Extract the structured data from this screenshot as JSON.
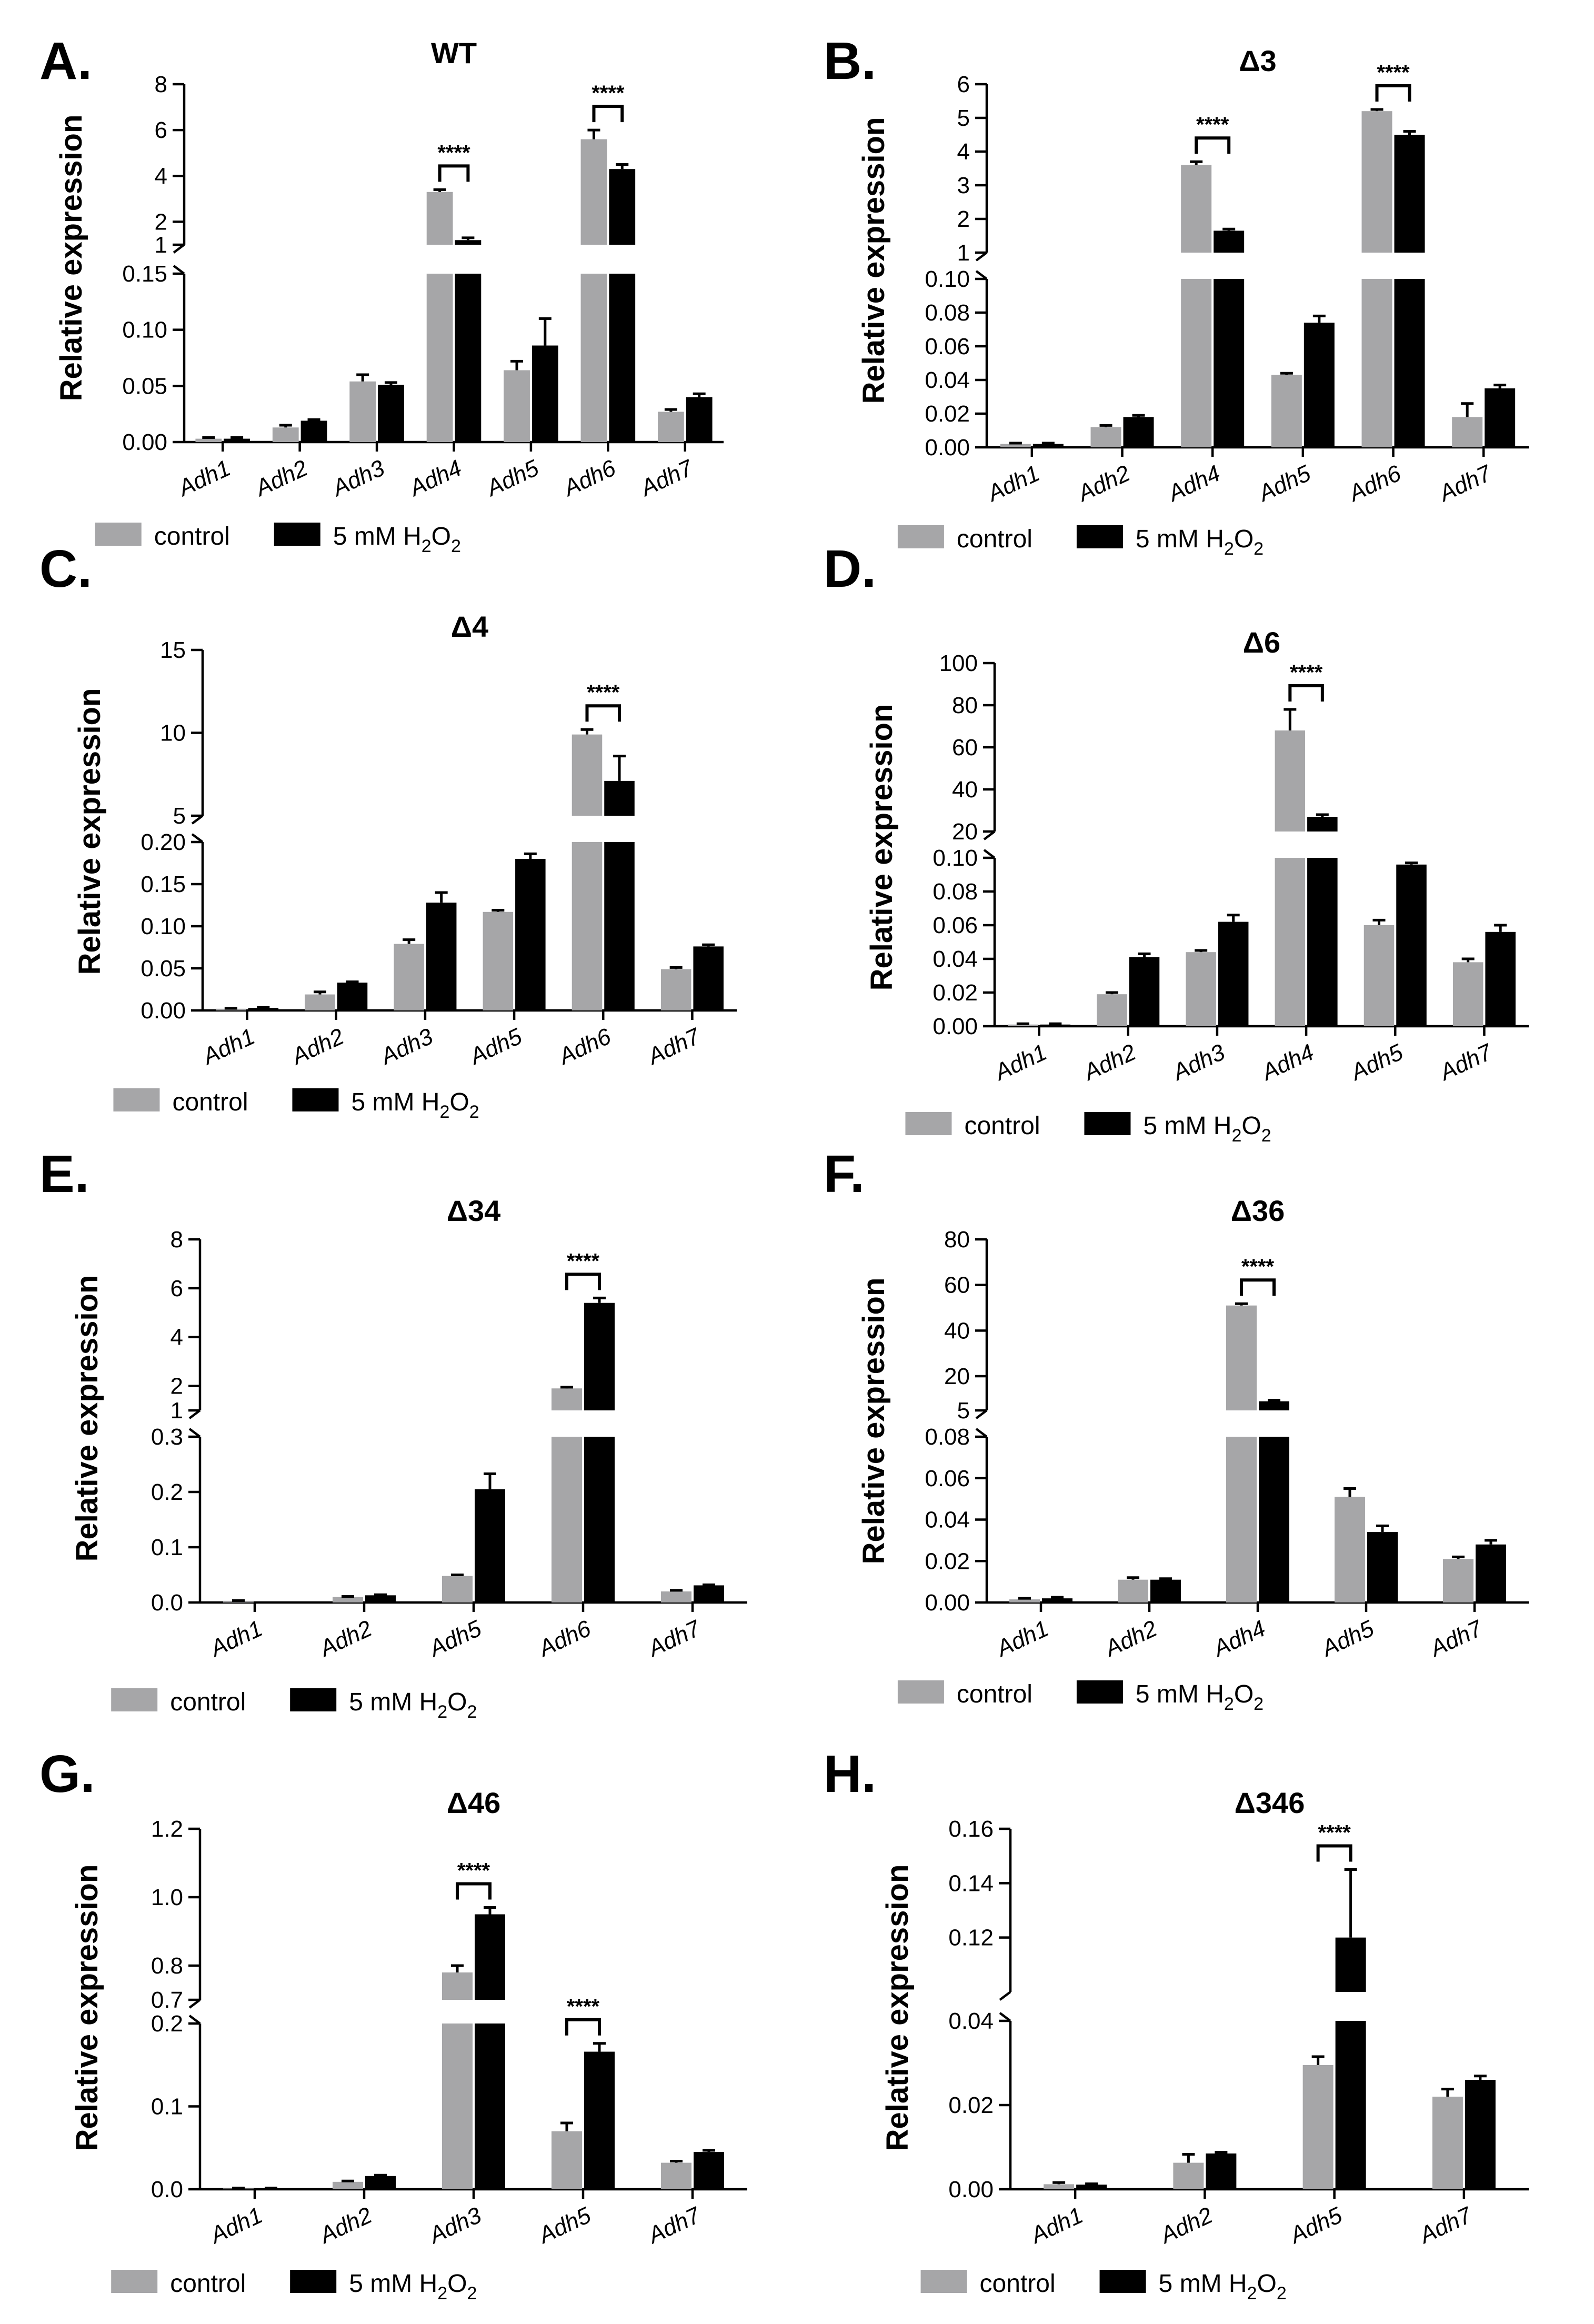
{
  "legend": {
    "control": "control",
    "treatment_prefix": "5 mM H",
    "treatment_sub1": "2",
    "treatment_mid": "O",
    "treatment_sub2": "2",
    "control_color": "#a6a6a8",
    "treatment_color": "#000000"
  },
  "y_axis_label": "Relative expression",
  "chart_data": [
    {
      "type": "bar",
      "panel": "A.",
      "title": "WT",
      "categories": [
        "Adh1",
        "Adh2",
        "Adh3",
        "Adh4",
        "Adh5",
        "Adh6",
        "Adh7"
      ],
      "series": [
        {
          "name": "control",
          "values": [
            0.003,
            0.013,
            0.054,
            3.3,
            0.064,
            5.6,
            0.027
          ],
          "errors": [
            0.001,
            0.002,
            0.006,
            0.1,
            0.008,
            0.4,
            0.002
          ]
        },
        {
          "name": "5 mM H2O2",
          "values": [
            0.003,
            0.019,
            0.051,
            1.2,
            0.086,
            4.3,
            0.04
          ],
          "errors": [
            0.001,
            0.001,
            0.002,
            0.1,
            0.024,
            0.2,
            0.003
          ]
        }
      ],
      "broken_axis": true,
      "lower_ylim": [
        0,
        0.15
      ],
      "lower_ticks": [
        "0.00",
        "0.05",
        "0.10",
        "0.15"
      ],
      "upper_ylim": [
        1,
        8
      ],
      "upper_ticks": [
        "1",
        "2",
        "4",
        "6",
        "8"
      ],
      "significance": [
        {
          "category": "Adh4",
          "label": "****"
        },
        {
          "category": "Adh6",
          "label": "****"
        }
      ]
    },
    {
      "type": "bar",
      "panel": "B.",
      "title": "Δ3",
      "categories": [
        "Adh1",
        "Adh2",
        "Adh4",
        "Adh5",
        "Adh6",
        "Adh7"
      ],
      "series": [
        {
          "name": "control",
          "values": [
            0.002,
            0.012,
            3.6,
            0.043,
            5.2,
            0.018
          ],
          "errors": [
            0.0005,
            0.001,
            0.1,
            0.001,
            0.05,
            0.008
          ]
        },
        {
          "name": "5 mM H2O2",
          "values": [
            0.002,
            0.018,
            1.65,
            0.074,
            4.5,
            0.035
          ],
          "errors": [
            0.0005,
            0.001,
            0.05,
            0.004,
            0.1,
            0.002
          ]
        }
      ],
      "broken_axis": true,
      "lower_ylim": [
        0,
        0.1
      ],
      "lower_ticks": [
        "0.00",
        "0.02",
        "0.04",
        "0.06",
        "0.08",
        "0.10"
      ],
      "upper_ylim": [
        1,
        6
      ],
      "upper_ticks": [
        "1",
        "2",
        "3",
        "4",
        "5",
        "6"
      ],
      "significance": [
        {
          "category": "Adh4",
          "label": "****"
        },
        {
          "category": "Adh6",
          "label": "****"
        }
      ]
    },
    {
      "type": "bar",
      "panel": "C.",
      "title": "Δ4",
      "categories": [
        "Adh1",
        "Adh2",
        "Adh3",
        "Adh5",
        "Adh6",
        "Adh7"
      ],
      "series": [
        {
          "name": "control",
          "values": [
            0.002,
            0.019,
            0.079,
            0.117,
            9.9,
            0.049
          ],
          "errors": [
            0.0005,
            0.003,
            0.005,
            0.002,
            0.3,
            0.002
          ]
        },
        {
          "name": "5 mM H2O2",
          "values": [
            0.003,
            0.033,
            0.128,
            0.18,
            7.1,
            0.076
          ],
          "errors": [
            0.0005,
            0.001,
            0.012,
            0.006,
            1.5,
            0.002
          ]
        }
      ],
      "broken_axis": true,
      "lower_ylim": [
        0,
        0.2
      ],
      "lower_ticks": [
        "0.00",
        "0.05",
        "0.10",
        "0.15",
        "0.20"
      ],
      "upper_ylim": [
        5,
        15
      ],
      "upper_ticks": [
        "5",
        "10",
        "15"
      ],
      "significance": [
        {
          "category": "Adh6",
          "label": "****"
        }
      ]
    },
    {
      "type": "bar",
      "panel": "D.",
      "title": "Δ6",
      "categories": [
        "Adh1",
        "Adh2",
        "Adh3",
        "Adh4",
        "Adh5",
        "Adh7"
      ],
      "series": [
        {
          "name": "control",
          "values": [
            0.001,
            0.019,
            0.044,
            68,
            0.06,
            0.038
          ],
          "errors": [
            0.0005,
            0.001,
            0.001,
            10,
            0.003,
            0.002
          ]
        },
        {
          "name": "5 mM H2O2",
          "values": [
            0.001,
            0.041,
            0.062,
            27,
            0.096,
            0.056
          ],
          "errors": [
            0.0005,
            0.002,
            0.004,
            1,
            0.001,
            0.004
          ]
        }
      ],
      "broken_axis": true,
      "lower_ylim": [
        0,
        0.1
      ],
      "lower_ticks": [
        "0.00",
        "0.02",
        "0.04",
        "0.06",
        "0.08",
        "0.10"
      ],
      "upper_ylim": [
        20,
        100
      ],
      "upper_ticks": [
        "20",
        "40",
        "60",
        "80",
        "100"
      ],
      "significance": [
        {
          "category": "Adh4",
          "label": "****"
        }
      ]
    },
    {
      "type": "bar",
      "panel": "E.",
      "title": "Δ34",
      "categories": [
        "Adh1",
        "Adh2",
        "Adh5",
        "Adh6",
        "Adh7"
      ],
      "series": [
        {
          "name": "control",
          "values": [
            0.003,
            0.01,
            0.048,
            1.9,
            0.02
          ],
          "errors": [
            0.0005,
            0.001,
            0.002,
            0.05,
            0.002
          ]
        },
        {
          "name": "5 mM H2O2",
          "values": [
            0.0,
            0.013,
            0.205,
            5.4,
            0.031
          ],
          "errors": [
            0.0,
            0.001,
            0.028,
            0.2,
            0.001
          ]
        }
      ],
      "broken_axis": true,
      "lower_ylim": [
        0,
        0.3
      ],
      "lower_ticks": [
        "0.0",
        "0.1",
        "0.2",
        "0.3"
      ],
      "upper_ylim": [
        1,
        8
      ],
      "upper_ticks": [
        "1",
        "2",
        "4",
        "6",
        "8"
      ],
      "significance": [
        {
          "category": "Adh6",
          "label": "****"
        }
      ]
    },
    {
      "type": "bar",
      "panel": "F.",
      "title": "Δ36",
      "categories": [
        "Adh1",
        "Adh2",
        "Adh4",
        "Adh5",
        "Adh7"
      ],
      "series": [
        {
          "name": "control",
          "values": [
            0.0015,
            0.011,
            51,
            0.051,
            0.021
          ],
          "errors": [
            0.0005,
            0.001,
            0.8,
            0.004,
            0.001
          ]
        },
        {
          "name": "5 mM H2O2",
          "values": [
            0.002,
            0.011,
            9,
            0.034,
            0.028
          ],
          "errors": [
            0.0005,
            0.0005,
            0.5,
            0.003,
            0.002
          ]
        }
      ],
      "broken_axis": true,
      "lower_ylim": [
        0,
        0.08
      ],
      "lower_ticks": [
        "0.00",
        "0.02",
        "0.04",
        "0.06",
        "0.08"
      ],
      "upper_ylim": [
        5,
        80
      ],
      "upper_ticks": [
        "5",
        "20",
        "40",
        "60",
        "80"
      ],
      "significance": [
        {
          "category": "Adh4",
          "label": "****"
        }
      ]
    },
    {
      "type": "bar",
      "panel": "G.",
      "title": "Δ46",
      "categories": [
        "Adh1",
        "Adh2",
        "Adh3",
        "Adh5",
        "Adh7"
      ],
      "series": [
        {
          "name": "control",
          "values": [
            0.001,
            0.009,
            0.78,
            0.07,
            0.032
          ],
          "errors": [
            0.0005,
            0.001,
            0.02,
            0.01,
            0.002
          ]
        },
        {
          "name": "5 mM H2O2",
          "values": [
            0.001,
            0.016,
            0.95,
            0.166,
            0.045
          ],
          "errors": [
            0.0005,
            0.001,
            0.02,
            0.01,
            0.002
          ]
        }
      ],
      "broken_axis": true,
      "lower_ylim": [
        0,
        0.2
      ],
      "lower_ticks": [
        "0.0",
        "0.1",
        "0.2"
      ],
      "upper_ylim": [
        0.7,
        1.2
      ],
      "upper_ticks": [
        "0.7",
        "0.8",
        "1.0",
        "1.2"
      ],
      "significance": [
        {
          "category": "Adh3",
          "label": "****"
        },
        {
          "category": "Adh5",
          "label": "****"
        }
      ]
    },
    {
      "type": "bar",
      "panel": "H.",
      "title": "Δ346",
      "categories": [
        "Adh1",
        "Adh2",
        "Adh5",
        "Adh7"
      ],
      "series": [
        {
          "name": "control",
          "values": [
            0.0012,
            0.0063,
            0.0295,
            0.022
          ],
          "errors": [
            0.0004,
            0.002,
            0.002,
            0.0018
          ]
        },
        {
          "name": "5 mM H2O2",
          "values": [
            0.0011,
            0.0085,
            0.12,
            0.026
          ],
          "errors": [
            0.0002,
            0.0003,
            0.025,
            0.0009
          ]
        }
      ],
      "broken_axis": true,
      "lower_ylim": [
        0,
        0.04
      ],
      "lower_ticks": [
        "0.00",
        "0.02",
        "0.04"
      ],
      "upper_ylim": [
        0.1,
        0.16
      ],
      "upper_ticks": [
        "0.12",
        "0.14",
        "0.16"
      ],
      "significance": [
        {
          "category": "Adh5",
          "label": "****"
        }
      ]
    }
  ]
}
